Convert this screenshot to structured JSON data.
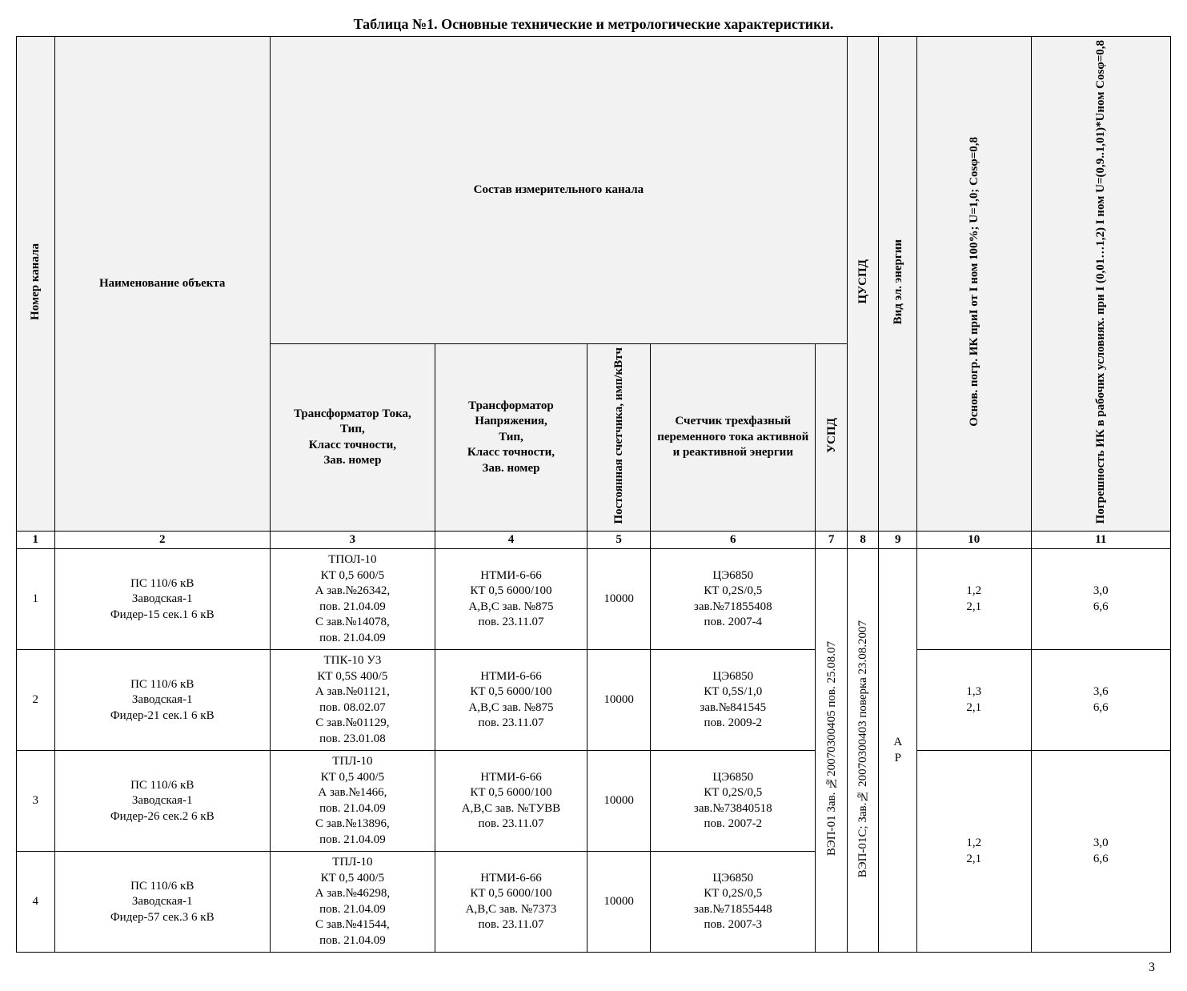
{
  "title": "Таблица №1. Основные технические и метрологические характеристики.",
  "page_number": "3",
  "headers": {
    "group": "Состав измерительного канала",
    "col1": "Номер канала",
    "col2": "Наименование объекта",
    "col3": "Трансформатор Тока,\nТип,\nКласс точности,\nЗав. номер",
    "col4": "Трансформатор Напряжения,\nТип,\nКласс точности,\nЗав. номер",
    "col5": "Постоянная счетчика, имп/кВтч",
    "col6": "Счетчик трехфазный переменного тока активной и реактивной энергии",
    "col7": "УСПД",
    "col8": "ЦУСПД",
    "col9": "Вид эл. энергии",
    "col10": "Основ. погр. ИК приI от I ном 100%; U=1,0; Cosφ=0,8",
    "col11": "Погрешность ИК в рабочих условиях. при I (0,01…1,2) I ном U=(0,9..1,01)*Uном Cosφ=0,8"
  },
  "numrow": [
    "1",
    "2",
    "3",
    "4",
    "5",
    "6",
    "7",
    "8",
    "9",
    "10",
    "11"
  ],
  "merged": {
    "uspd": "ВЭП-01 Зав. №20070300405 пов. 25.08.07",
    "cuspd": "ВЭП-01С; Зав.№ 20070300403 поверка 23.08.2007",
    "energy": "А\nР"
  },
  "rows": [
    {
      "n": "1",
      "obj": "ПС 110/6 кВ\nЗаводская-1\nФидер-15 сек.1 6 кВ",
      "ct": "ТПОЛ-10\nКТ 0,5  600/5\nА зав.№26342,\nпов. 21.04.09\nС зав.№14078,\nпов. 21.04.09",
      "vt": "НТМИ-6-66\nКТ 0,5  6000/100\nА,В,С зав. №875\nпов. 23.11.07",
      "const": "10000",
      "meter": "ЦЭ6850\nКТ 0,2S/0,5\nзав.№71855408\nпов. 2007-4",
      "err10": "1,2\n2,1",
      "err11": "3,0\n6,6"
    },
    {
      "n": "2",
      "obj": "ПС 110/6 кВ\nЗаводская-1\nФидер-21 сек.1 6 кВ",
      "ct": "ТПК-10 У3\nКТ 0,5S  400/5\nА зав.№01121,\nпов. 08.02.07\nС зав.№01129,\nпов. 23.01.08",
      "vt": "НТМИ-6-66\nКТ 0,5  6000/100\nА,В,С зав. №875\nпов. 23.11.07",
      "const": "10000",
      "meter": "ЦЭ6850\nКТ 0,5S/1,0\nзав.№841545\nпов. 2009-2",
      "err10": "1,3\n2,1",
      "err11": "3,6\n6,6"
    },
    {
      "n": "3",
      "obj": "ПС 110/6 кВ\nЗаводская-1\nФидер-26 сек.2 6 кВ",
      "ct": "ТПЛ-10\nКТ 0,5  400/5\nА зав.№1466,\nпов. 21.04.09\nС зав.№13896,\nпов. 21.04.09",
      "vt": "НТМИ-6-66\nКТ 0,5  6000/100\nА,В,С зав. №ТУВВ\nпов. 23.11.07",
      "const": "10000",
      "meter": "ЦЭ6850\nКТ 0,2S/0,5\nзав.№73840518\nпов. 2007-2",
      "err10": "1,2\n2,1",
      "err11": "3,0\n6,6"
    },
    {
      "n": "4",
      "obj": "ПС 110/6 кВ\nЗаводская-1\nФидер-57 сек.3 6 кВ",
      "ct": "ТПЛ-10\nКТ 0,5  400/5\nА зав.№46298,\nпов. 21.04.09\nС зав.№41544,\nпов. 21.04.09",
      "vt": "НТМИ-6-66\nКТ 0,5  6000/100\nА,В,С зав. №7373\nпов. 23.11.07",
      "const": "10000",
      "meter": "ЦЭ6850\nКТ 0,2S/0,5\nзав.№71855448\nпов. 2007-3",
      "err10": "",
      "err11": ""
    }
  ],
  "colwidths": {
    "c1": "3%",
    "c2": "17%",
    "c3": "13%",
    "c4": "12%",
    "c5": "5%",
    "c6": "13%",
    "c7": "2.5%",
    "c8": "2.5%",
    "c9": "3%",
    "c10": "9%",
    "c11": "11%"
  }
}
